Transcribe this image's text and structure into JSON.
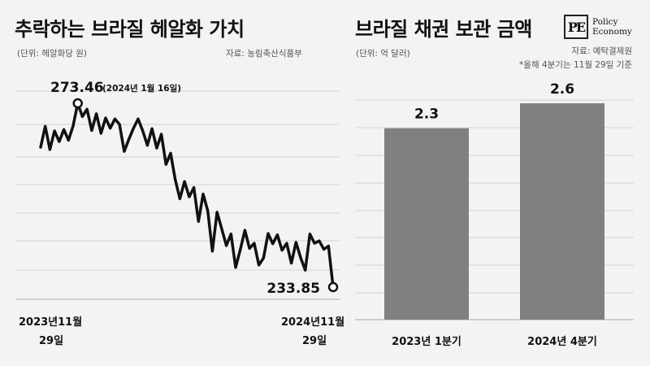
{
  "left_panel": {
    "title": "추락하는 브라질 헤알화 가치",
    "unit": "(단위: 헤알화당 원)",
    "source": "자료: 농림축산식품부",
    "x_start_label_line1": "2023년11월",
    "x_start_label_line2": "29일",
    "x_end_label_line1": "2024년11월",
    "x_end_label_line2": "29일"
  },
  "right_panel": {
    "title": "브라질 채권 보관 금액",
    "unit": "(단위: 억 달러)",
    "source": "자료: 예탁결제원",
    "note": "*올해 4분기는 11월 29일 기준"
  },
  "logo": {
    "mark": "PE",
    "line1": "Policy",
    "line2": "Economy"
  },
  "chart_data": [
    {
      "type": "line",
      "title": "추락하는 브라질 헤알화 가치",
      "ylabel": "(단위: 헤알화당 원)",
      "ylim": [
        230,
        282
      ],
      "x_range": [
        "2023-11-29",
        "2024-11-29"
      ],
      "grid": true,
      "max_annotation": {
        "value": 273.46,
        "label_value": "273.46",
        "label_date": "(2024년 1월 16일)"
      },
      "end_annotation": {
        "value": 233.85,
        "label_value": "233.85"
      },
      "values": [
        264.0,
        268.5,
        263.5,
        267.5,
        265.2,
        267.8,
        265.5,
        268.6,
        273.46,
        270.6,
        272.2,
        267.6,
        271.2,
        267.0,
        270.3,
        268.1,
        270.1,
        268.9,
        263.1,
        265.7,
        268.1,
        270.1,
        267.5,
        264.4,
        268.0,
        263.8,
        266.8,
        260.3,
        262.7,
        257.0,
        252.9,
        256.6,
        253.3,
        255.3,
        248.0,
        253.9,
        250.3,
        241.6,
        250.0,
        246.4,
        242.8,
        245.3,
        238.1,
        241.9,
        246.1,
        242.2,
        243.3,
        238.6,
        240.1,
        245.4,
        243.2,
        245.1,
        241.8,
        243.3,
        239.0,
        243.5,
        240.2,
        237.5,
        245.3,
        243.3,
        243.8,
        242.0,
        242.7,
        233.85
      ]
    },
    {
      "type": "bar",
      "title": "브라질 채권 보관 금액",
      "ylabel": "(단위: 억 달러)",
      "categories": [
        "2023년 1분기",
        "2024년 4분기"
      ],
      "values": [
        2.3,
        2.6
      ],
      "value_labels": [
        "2.3",
        "2.6"
      ],
      "ylim": [
        0,
        2.6
      ],
      "color": "#808080",
      "grid": true
    }
  ]
}
